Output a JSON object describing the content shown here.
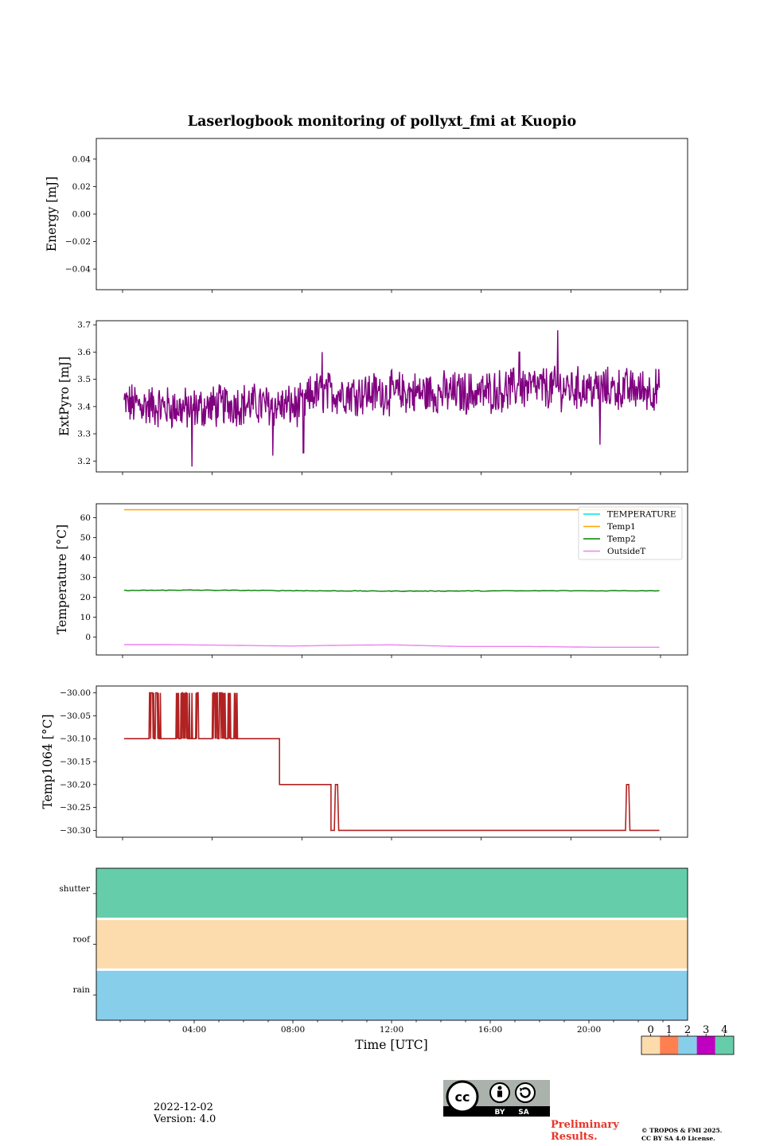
{
  "title": "Laserlogbook monitoring of pollyxt_fmi at Kuopio",
  "footer": {
    "date": "2022-12-02",
    "version": "Version: 4.0",
    "preliminary_line1": "Preliminary",
    "preliminary_line2": "Results.",
    "copyright_line1": "© TROPOS & FMI 2025.",
    "copyright_line2": "CC BY SA 4.0 License.",
    "license_by": "BY",
    "license_sa": "SA"
  },
  "chart_data": [
    {
      "id": "energy",
      "type": "line",
      "ylabel": "Energy [mJ]",
      "ylim": [
        -0.055,
        0.055
      ],
      "yticks": [
        0.04,
        0.02,
        0.0,
        -0.02,
        -0.04
      ],
      "ytick_labels": [
        "0.04",
        "0.02",
        "0.00",
        "−0.02",
        "−0.04"
      ],
      "series": []
    },
    {
      "id": "extpyro",
      "type": "line",
      "ylabel": "ExtPyro [mJ]",
      "ylim": [
        3.16,
        3.715
      ],
      "yticks": [
        3.7,
        3.6,
        3.5,
        3.4,
        3.3,
        3.2
      ],
      "ytick_labels": [
        "3.7",
        "3.6",
        "3.5",
        "3.4",
        "3.3",
        "3.2"
      ],
      "series": [
        {
          "name": "ExtPyro",
          "color": "#800080",
          "x_range_hours": [
            0.07,
            23.95
          ],
          "segments": [
            {
              "x": [
                0.07,
                3.0,
                5.0,
                8.0,
                8.5,
                12.0,
                16.0,
                18.0,
                23.95
              ],
              "mean": [
                3.41,
                3.39,
                3.41,
                3.4,
                3.45,
                3.45,
                3.45,
                3.47,
                3.46
              ]
            }
          ],
          "noise_amplitude": 0.07,
          "spikes": [
            [
              3.1,
              3.18
            ],
            [
              6.7,
              3.22
            ],
            [
              8.07,
              3.23
            ],
            [
              19.42,
              3.68
            ],
            [
              21.3,
              3.26
            ],
            [
              8.9,
              3.6
            ],
            [
              17.7,
              3.6
            ]
          ]
        }
      ]
    },
    {
      "id": "temperature",
      "type": "line",
      "ylabel": "Temperature [°C]",
      "ylim": [
        -9,
        67
      ],
      "yticks": [
        60,
        50,
        40,
        30,
        20,
        10,
        0
      ],
      "ytick_labels": [
        "60",
        "50",
        "40",
        "30",
        "20",
        "10",
        "0"
      ],
      "legend": "top-right",
      "series": [
        {
          "name": "TEMPERATURE",
          "color": "#00e5e5",
          "x": [],
          "values": []
        },
        {
          "name": "Temp1",
          "color": "#ffa500",
          "x": [
            0.07,
            23.95
          ],
          "values": [
            64,
            64
          ]
        },
        {
          "name": "Temp2",
          "color": "#008000",
          "x": [
            0.07,
            3.0,
            8.0,
            12.0,
            16.0,
            23.95
          ],
          "values": [
            23.4,
            23.6,
            23.3,
            23.1,
            23.2,
            23.3
          ]
        },
        {
          "name": "OutsideT",
          "color": "#ee82ee",
          "x": [
            0.07,
            2.0,
            4.5,
            7.5,
            10.0,
            12.0,
            15.0,
            18.0,
            21.0,
            23.95
          ],
          "values": [
            -3.8,
            -3.8,
            -4.1,
            -4.5,
            -4.1,
            -3.9,
            -4.7,
            -4.7,
            -5.1,
            -5.1
          ]
        }
      ]
    },
    {
      "id": "temp1064",
      "type": "line",
      "ylabel": "Temp1064 [°C]",
      "ylim": [
        -30.315,
        -29.985
      ],
      "yticks": [
        -30.0,
        -30.05,
        -30.1,
        -30.15,
        -30.2,
        -30.25,
        -30.3
      ],
      "ytick_labels": [
        "−30.00",
        "−30.05",
        "−30.10",
        "−30.15",
        "−30.20",
        "−30.25",
        "−30.30"
      ],
      "series": [
        {
          "name": "Temp1064",
          "color": "#b22222",
          "levels": [
            {
              "x0": 0.07,
              "x1": 7.0,
              "value": -30.1
            },
            {
              "x0": 7.0,
              "x1": 9.3,
              "value": -30.2
            },
            {
              "x0": 9.3,
              "x1": 23.95,
              "value": -30.3
            }
          ],
          "flicker_windows": [
            {
              "x0": 1.2,
              "x1": 1.7,
              "low": -30.1,
              "high": -30.0
            },
            {
              "x0": 2.4,
              "x1": 3.4,
              "low": -30.1,
              "high": -30.0
            },
            {
              "x0": 4.0,
              "x1": 5.2,
              "low": -30.1,
              "high": -30.0
            },
            {
              "x0": 9.0,
              "x1": 9.6,
              "low": -30.3,
              "high": -30.2
            },
            {
              "x0": 22.2,
              "x1": 22.6,
              "low": -30.3,
              "high": -30.2
            }
          ]
        }
      ]
    },
    {
      "id": "status",
      "type": "heatmap",
      "xlabel": "Time [UTC]",
      "rows": [
        "shutter",
        "roof",
        "rain"
      ],
      "values": [
        4,
        0,
        2
      ],
      "colorbar": {
        "ticks": [
          "0",
          "1",
          "2",
          "3",
          "4"
        ],
        "colors": [
          "#fcdcac",
          "#fe7f50",
          "#87ceeb",
          "#c000c0",
          "#66cdaa"
        ]
      },
      "xticks_hours": [
        4,
        8,
        12,
        16,
        20
      ],
      "xtick_labels": [
        "04:00",
        "08:00",
        "12:00",
        "16:00",
        "20:00"
      ]
    }
  ]
}
